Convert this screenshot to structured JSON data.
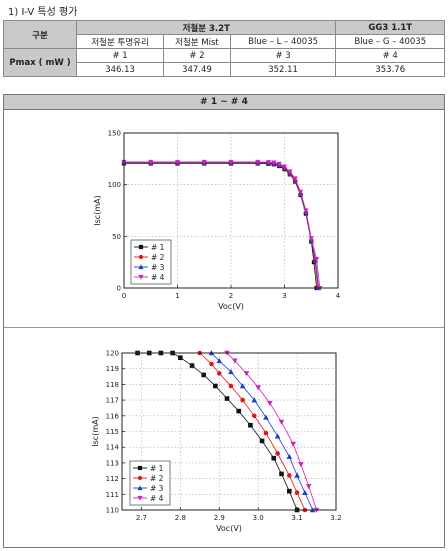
{
  "heading": "1) I-V 특성 평가",
  "spec_table": {
    "col_header": "구분",
    "group1": "저철분 3.2T",
    "group2": "GG3 1.1T",
    "types": [
      "저철분 투명유리",
      "저철분 Mist",
      "Blue – L – 40035",
      "Blue – G – 40035"
    ],
    "row_label": "Pmax ( mW )",
    "ids": [
      "# 1",
      "# 2",
      "# 3",
      "# 4"
    ],
    "pmax": [
      "346.13",
      "347.49",
      "352.11",
      "353.76"
    ]
  },
  "panel_title": "# 1 ~ # 4",
  "colors": {
    "s1": "#111111",
    "s2": "#e01818",
    "s3": "#1a3fd0",
    "s4": "#d020c0"
  },
  "chart_data": [
    {
      "type": "line",
      "xlabel": "Voc(V)",
      "ylabel": "Isc(mA)",
      "xlim": [
        0,
        4
      ],
      "ylim": [
        0,
        150
      ],
      "xticks": [
        0,
        1,
        2,
        3,
        4
      ],
      "yticks": [
        0,
        50,
        100,
        150
      ],
      "grid": true,
      "legend": "lower-left",
      "series": [
        {
          "name": "# 1",
          "marker": "square",
          "x": [
            0,
            0.5,
            1.0,
            1.5,
            2.0,
            2.5,
            2.7,
            2.8,
            2.9,
            3.0,
            3.1,
            3.2,
            3.3,
            3.4,
            3.5,
            3.55,
            3.6
          ],
          "y": [
            120.5,
            120.5,
            120.5,
            120.5,
            120.5,
            120.5,
            120.2,
            119.7,
            118,
            115,
            110,
            103,
            90,
            72,
            45,
            25,
            0
          ]
        },
        {
          "name": "# 2",
          "marker": "circle",
          "x": [
            0,
            0.5,
            1.0,
            1.5,
            2.0,
            2.5,
            2.7,
            2.8,
            2.9,
            3.0,
            3.1,
            3.2,
            3.3,
            3.4,
            3.5,
            3.57,
            3.62
          ],
          "y": [
            121,
            121,
            121,
            121,
            121,
            121,
            120.7,
            120.2,
            118.6,
            115.6,
            110.6,
            103.5,
            91,
            73,
            46,
            26,
            0
          ]
        },
        {
          "name": "# 3",
          "marker": "triangle",
          "x": [
            0,
            0.5,
            1.0,
            1.5,
            2.0,
            2.5,
            2.7,
            2.8,
            2.9,
            3.0,
            3.1,
            3.2,
            3.3,
            3.4,
            3.5,
            3.58,
            3.64
          ],
          "y": [
            121.5,
            121.5,
            121.5,
            121.5,
            121.5,
            121.5,
            121.2,
            120.8,
            119.5,
            116.8,
            112,
            105,
            92,
            74,
            47,
            27,
            0
          ]
        },
        {
          "name": "# 4",
          "marker": "triangle-down",
          "x": [
            0,
            0.5,
            1.0,
            1.5,
            2.0,
            2.5,
            2.7,
            2.8,
            2.9,
            3.0,
            3.1,
            3.2,
            3.3,
            3.4,
            3.5,
            3.6,
            3.66
          ],
          "y": [
            122,
            122,
            122,
            122,
            122,
            122,
            121.7,
            121.3,
            120,
            117.5,
            112.6,
            106,
            93,
            75,
            48,
            28,
            0
          ]
        }
      ]
    },
    {
      "type": "line",
      "xlabel": "Voc(V)",
      "ylabel": "Isc(mA)",
      "xlim": [
        2.65,
        3.2
      ],
      "ylim": [
        110,
        120
      ],
      "xticks": [
        2.7,
        2.8,
        2.9,
        3.0,
        3.1,
        3.2
      ],
      "yticks": [
        110,
        111,
        112,
        113,
        114,
        115,
        116,
        117,
        118,
        119,
        120
      ],
      "grid": true,
      "legend": "lower-left",
      "series": [
        {
          "name": "# 1",
          "marker": "square",
          "x": [
            2.69,
            2.72,
            2.75,
            2.78,
            2.8,
            2.83,
            2.86,
            2.89,
            2.92,
            2.95,
            2.98,
            3.01,
            3.04,
            3.06,
            3.08,
            3.1
          ],
          "y": [
            120,
            120,
            120,
            120,
            119.7,
            119.2,
            118.6,
            117.9,
            117.1,
            116.3,
            115.4,
            114.4,
            113.3,
            112.3,
            111.2,
            110
          ]
        },
        {
          "name": "# 2",
          "marker": "circle",
          "x": [
            2.85,
            2.88,
            2.9,
            2.93,
            2.96,
            2.99,
            3.02,
            3.05,
            3.08,
            3.1,
            3.12
          ],
          "y": [
            120,
            119.3,
            118.7,
            117.9,
            117.0,
            116.0,
            114.9,
            113.6,
            112.2,
            111.1,
            110
          ]
        },
        {
          "name": "# 3",
          "marker": "triangle",
          "x": [
            2.88,
            2.9,
            2.93,
            2.96,
            2.99,
            3.02,
            3.05,
            3.08,
            3.1,
            3.12,
            3.14
          ],
          "y": [
            120,
            119.5,
            118.8,
            117.9,
            117.0,
            115.9,
            114.7,
            113.4,
            112.2,
            111.1,
            110
          ]
        },
        {
          "name": "# 4",
          "marker": "triangle-down",
          "x": [
            2.92,
            2.94,
            2.97,
            3.0,
            3.03,
            3.06,
            3.09,
            3.11,
            3.13,
            3.15
          ],
          "y": [
            120,
            119.5,
            118.7,
            117.8,
            116.8,
            115.6,
            114.2,
            112.9,
            111.5,
            110
          ]
        }
      ]
    }
  ]
}
